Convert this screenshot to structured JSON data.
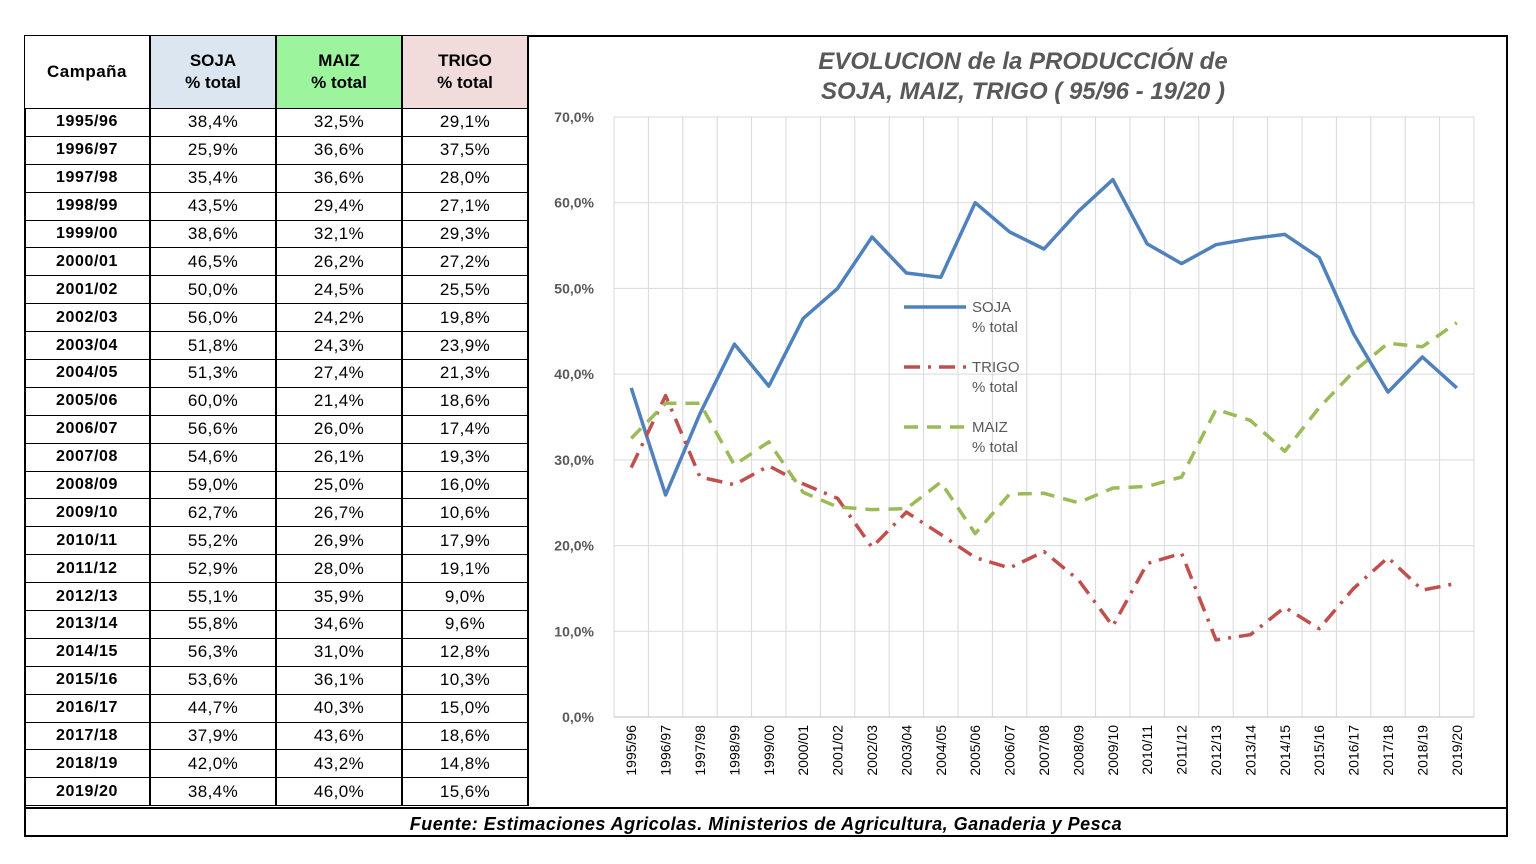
{
  "table": {
    "headers": {
      "campana": "Campaña",
      "soja": "SOJA",
      "soja_sub": "% total",
      "maiz": "MAIZ",
      "maiz_sub": "% total",
      "trigo": "TRIGO",
      "trigo_sub": "% total"
    },
    "rows": [
      [
        "1995/96",
        "38,4%",
        "32,5%",
        "29,1%"
      ],
      [
        "1996/97",
        "25,9%",
        "36,6%",
        "37,5%"
      ],
      [
        "1997/98",
        "35,4%",
        "36,6%",
        "28,0%"
      ],
      [
        "1998/99",
        "43,5%",
        "29,4%",
        "27,1%"
      ],
      [
        "1999/00",
        "38,6%",
        "32,1%",
        "29,3%"
      ],
      [
        "2000/01",
        "46,5%",
        "26,2%",
        "27,2%"
      ],
      [
        "2001/02",
        "50,0%",
        "24,5%",
        "25,5%"
      ],
      [
        "2002/03",
        "56,0%",
        "24,2%",
        "19,8%"
      ],
      [
        "2003/04",
        "51,8%",
        "24,3%",
        "23,9%"
      ],
      [
        "2004/05",
        "51,3%",
        "27,4%",
        "21,3%"
      ],
      [
        "2005/06",
        "60,0%",
        "21,4%",
        "18,6%"
      ],
      [
        "2006/07",
        "56,6%",
        "26,0%",
        "17,4%"
      ],
      [
        "2007/08",
        "54,6%",
        "26,1%",
        "19,3%"
      ],
      [
        "2008/09",
        "59,0%",
        "25,0%",
        "16,0%"
      ],
      [
        "2009/10",
        "62,7%",
        "26,7%",
        "10,6%"
      ],
      [
        "2010/11",
        "55,2%",
        "26,9%",
        "17,9%"
      ],
      [
        "2011/12",
        "52,9%",
        "28,0%",
        "19,1%"
      ],
      [
        "2012/13",
        "55,1%",
        "35,9%",
        "9,0%"
      ],
      [
        "2013/14",
        "55,8%",
        "34,6%",
        "9,6%"
      ],
      [
        "2014/15",
        "56,3%",
        "31,0%",
        "12,8%"
      ],
      [
        "2015/16",
        "53,6%",
        "36,1%",
        "10,3%"
      ],
      [
        "2016/17",
        "44,7%",
        "40,3%",
        "15,0%"
      ],
      [
        "2017/18",
        "37,9%",
        "43,6%",
        "18,6%"
      ],
      [
        "2018/19",
        "42,0%",
        "43,2%",
        "14,8%"
      ],
      [
        "2019/20",
        "38,4%",
        "46,0%",
        "15,6%"
      ]
    ]
  },
  "footer": "Fuente: Estimaciones Agricolas. Ministerios de Agricultura, Ganaderia y Pesca",
  "colors": {
    "soja": "#4f81bd",
    "trigo": "#c0504d",
    "maiz": "#9bbb59",
    "grid": "#d9d9d9"
  },
  "chart_data": {
    "type": "line",
    "title": [
      "EVOLUCION de la PRODUCCIÓN de",
      "SOJA, MAIZ, TRIGO ( 95/96 -  19/20 )"
    ],
    "categories": [
      "1995/96",
      "1996/97",
      "1997/98",
      "1998/99",
      "1999/00",
      "2000/01",
      "2001/02",
      "2002/03",
      "2003/04",
      "2004/05",
      "2005/06",
      "2006/07",
      "2007/08",
      "2008/09",
      "2009/10",
      "2010/11",
      "2011/12",
      "2012/13",
      "2013/14",
      "2014/15",
      "2015/16",
      "2016/17",
      "2017/18",
      "2018/19",
      "2019/20"
    ],
    "ylim": [
      0,
      70
    ],
    "yticks": [
      "0,0%",
      "10,0%",
      "20,0%",
      "30,0%",
      "40,0%",
      "50,0%",
      "60,0%",
      "70,0%"
    ],
    "grid": true,
    "legend_position": "center-left",
    "series": [
      {
        "name": "SOJA",
        "name2": "% total",
        "style": "solid",
        "values": [
          38.4,
          25.9,
          35.4,
          43.5,
          38.6,
          46.5,
          50.0,
          56.0,
          51.8,
          51.3,
          60.0,
          56.6,
          54.6,
          59.0,
          62.7,
          55.2,
          52.9,
          55.1,
          55.8,
          56.3,
          53.6,
          44.7,
          37.9,
          42.0,
          38.4
        ]
      },
      {
        "name": "TRIGO",
        "name2": "% total",
        "style": "dashdot",
        "values": [
          29.1,
          37.5,
          28.0,
          27.1,
          29.3,
          27.2,
          25.5,
          19.8,
          23.9,
          21.3,
          18.6,
          17.4,
          19.3,
          16.0,
          10.6,
          17.9,
          19.1,
          9.0,
          9.6,
          12.8,
          10.3,
          15.0,
          18.6,
          14.8,
          15.6
        ]
      },
      {
        "name": "MAIZ",
        "name2": "% total",
        "style": "dashed",
        "values": [
          32.5,
          36.6,
          36.6,
          29.4,
          32.1,
          26.2,
          24.5,
          24.2,
          24.3,
          27.4,
          21.4,
          26.0,
          26.1,
          25.0,
          26.7,
          26.9,
          28.0,
          35.9,
          34.6,
          31.0,
          36.1,
          40.3,
          43.6,
          43.2,
          46.0
        ]
      }
    ]
  }
}
